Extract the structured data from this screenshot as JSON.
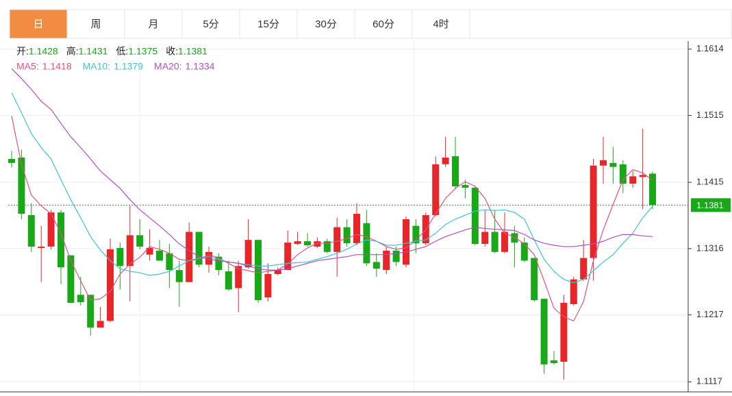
{
  "tabs": [
    "日",
    "周",
    "月",
    "5分",
    "15分",
    "30分",
    "60分",
    "4时"
  ],
  "active_tab": "日",
  "chart_data": {
    "type": "candlestick",
    "ohlc_labels": [
      "开:",
      "高:",
      "低:",
      "收:"
    ],
    "up_color": "#e8262a",
    "down_color": "#18a818",
    "ylim": [
      1.1104,
      1.1626
    ],
    "yticks": [
      1.1614,
      1.1515,
      1.1415,
      1.1316,
      1.1217,
      1.1117
    ],
    "grid": true,
    "candles": {
      "open": [
        1.145,
        1.1452,
        1.1366,
        1.1317,
        1.1319,
        1.137,
        1.1306,
        1.1247,
        1.1247,
        1.1198,
        1.1208,
        1.1317,
        1.129,
        1.1336,
        1.1307,
        1.1313,
        1.1309,
        1.1284,
        1.1266,
        1.1341,
        1.1292,
        1.1304,
        1.1282,
        1.1257,
        1.1288,
        1.1329,
        1.1243,
        1.1278,
        1.1284,
        1.1323,
        1.1327,
        1.1319,
        1.1327,
        1.1311,
        1.1348,
        1.1324,
        1.1354,
        1.1296,
        1.1284,
        1.1313,
        1.1292,
        1.135,
        1.1324,
        1.1366,
        1.1442,
        1.1454,
        1.1411,
        1.1407,
        1.1323,
        1.1341,
        1.1311,
        1.1339,
        1.1325,
        1.1302,
        1.1241,
        1.1149,
        1.1147,
        1.1233,
        1.127,
        1.1302,
        1.144,
        1.1444,
        1.1442,
        1.1413,
        1.1423,
        1.1428
      ],
      "high": [
        1.1462,
        1.1464,
        1.1384,
        1.135,
        1.1374,
        1.1374,
        1.1306,
        1.1274,
        1.1247,
        1.1229,
        1.1331,
        1.1325,
        1.138,
        1.136,
        1.1345,
        1.1329,
        1.1323,
        1.1298,
        1.1355,
        1.1341,
        1.1319,
        1.1309,
        1.1298,
        1.1298,
        1.136,
        1.1329,
        1.1294,
        1.1288,
        1.1343,
        1.1341,
        1.1339,
        1.1333,
        1.1331,
        1.1362,
        1.136,
        1.1384,
        1.1374,
        1.1309,
        1.1319,
        1.1319,
        1.1364,
        1.136,
        1.137,
        1.1454,
        1.1483,
        1.1483,
        1.1419,
        1.1409,
        1.1374,
        1.1374,
        1.137,
        1.135,
        1.1333,
        1.1302,
        1.1241,
        1.1163,
        1.1247,
        1.1274,
        1.1329,
        1.145,
        1.1483,
        1.1468,
        1.1448,
        1.1432,
        1.1495,
        1.1431
      ],
      "low": [
        1.1437,
        1.136,
        1.1311,
        1.1266,
        1.1315,
        1.1263,
        1.1235,
        1.1231,
        1.1186,
        1.1198,
        1.1206,
        1.1255,
        1.1237,
        1.1315,
        1.1298,
        1.1298,
        1.1257,
        1.1229,
        1.1266,
        1.1288,
        1.128,
        1.1276,
        1.1253,
        1.1221,
        1.1286,
        1.1235,
        1.1237,
        1.1276,
        1.1284,
        1.1321,
        1.1319,
        1.1317,
        1.1309,
        1.1274,
        1.1319,
        1.1321,
        1.129,
        1.1274,
        1.1278,
        1.129,
        1.1288,
        1.1309,
        1.1321,
        1.1364,
        1.1438,
        1.1405,
        1.1391,
        1.1321,
        1.1319,
        1.1309,
        1.1309,
        1.1288,
        1.1296,
        1.1237,
        1.1129,
        1.1143,
        1.112,
        1.1231,
        1.1268,
        1.1268,
        1.1413,
        1.1413,
        1.1399,
        1.1407,
        1.1375,
        1.1375
      ],
      "close": [
        1.1444,
        1.1368,
        1.1319,
        1.1319,
        1.137,
        1.1288,
        1.1235,
        1.1236,
        1.1198,
        1.1208,
        1.1315,
        1.129,
        1.1336,
        1.1319,
        1.1317,
        1.1298,
        1.1284,
        1.1266,
        1.1341,
        1.1292,
        1.1311,
        1.1284,
        1.1255,
        1.129,
        1.1329,
        1.1239,
        1.1278,
        1.1284,
        1.1325,
        1.1327,
        1.1321,
        1.1327,
        1.1311,
        1.1348,
        1.1324,
        1.1368,
        1.1294,
        1.1286,
        1.1313,
        1.1296,
        1.136,
        1.1324,
        1.1366,
        1.1442,
        1.1452,
        1.1409,
        1.1407,
        1.1323,
        1.1341,
        1.1311,
        1.1341,
        1.1325,
        1.1298,
        1.1239,
        1.1143,
        1.1145,
        1.1235,
        1.127,
        1.1302,
        1.144,
        1.1448,
        1.1438,
        1.1413,
        1.1424,
        1.1426,
        1.1381
      ]
    },
    "series": [
      {
        "name": "MA5",
        "color": "#e2517e",
        "values": [
          1.1514,
          1.1442,
          1.1396,
          1.138,
          1.1368,
          1.1339,
          1.1298,
          1.1268,
          1.1239,
          1.1241,
          1.1252,
          1.1278,
          1.1293,
          1.1303,
          1.1319,
          1.1315,
          1.1309,
          1.13,
          1.1298,
          1.13,
          1.1307,
          1.1302,
          1.1294,
          1.1286,
          1.1283,
          1.128,
          1.1282,
          1.1284,
          1.1293,
          1.1307,
          1.1317,
          1.1324,
          1.1324,
          1.1327,
          1.1331,
          1.1337,
          1.1334,
          1.1327,
          1.1319,
          1.1315,
          1.1317,
          1.1329,
          1.1344,
          1.1368,
          1.1391,
          1.1406,
          1.1416,
          1.1409,
          1.1391,
          1.136,
          1.1339,
          1.1333,
          1.1323,
          1.1307,
          1.1268,
          1.1227,
          1.1214,
          1.1208,
          1.1237,
          1.1298,
          1.1344,
          1.1382,
          1.1419,
          1.1434,
          1.1429,
          1.1418
        ]
      },
      {
        "name": "MA10",
        "color": "#3fc3d3",
        "values": [
          1.1549,
          1.1519,
          1.1488,
          1.1467,
          1.145,
          1.1419,
          1.1389,
          1.1362,
          1.1334,
          1.1314,
          1.1298,
          1.1286,
          1.1282,
          1.128,
          1.1276,
          1.1278,
          1.1282,
          1.129,
          1.1298,
          1.1302,
          1.1304,
          1.13,
          1.1296,
          1.1294,
          1.1292,
          1.129,
          1.129,
          1.1292,
          1.1294,
          1.1295,
          1.1296,
          1.13,
          1.1304,
          1.1309,
          1.1315,
          1.1323,
          1.1329,
          1.1327,
          1.1321,
          1.1321,
          1.1324,
          1.1327,
          1.1329,
          1.1339,
          1.1352,
          1.136,
          1.1366,
          1.1372,
          1.1374,
          1.1373,
          1.1374,
          1.137,
          1.136,
          1.1329,
          1.13,
          1.1282,
          1.127,
          1.1265,
          1.127,
          1.1283,
          1.1296,
          1.1307,
          1.1324,
          1.1339,
          1.1362,
          1.1379
        ]
      },
      {
        "name": "MA20",
        "color": "#b04fc2",
        "values": [
          1.1585,
          1.157,
          1.1554,
          1.1536,
          1.1524,
          1.1503,
          1.1483,
          1.1467,
          1.145,
          1.1432,
          1.1419,
          1.1406,
          1.1389,
          1.1374,
          1.1362,
          1.135,
          1.1337,
          1.1323,
          1.1313,
          1.1304,
          1.13,
          1.1298,
          1.1296,
          1.1294,
          1.129,
          1.1286,
          1.1284,
          1.1284,
          1.1286,
          1.129,
          1.1294,
          1.1298,
          1.13,
          1.1302,
          1.1304,
          1.1307,
          1.1307,
          1.1307,
          1.1307,
          1.1309,
          1.1311,
          1.1315,
          1.1319,
          1.1327,
          1.1334,
          1.1339,
          1.1344,
          1.1348,
          1.1346,
          1.1345,
          1.1344,
          1.1343,
          1.1337,
          1.1329,
          1.1324,
          1.1321,
          1.1319,
          1.1319,
          1.1321,
          1.1323,
          1.1327,
          1.1333,
          1.1337,
          1.1337,
          1.1335,
          1.1334
        ]
      }
    ]
  }
}
